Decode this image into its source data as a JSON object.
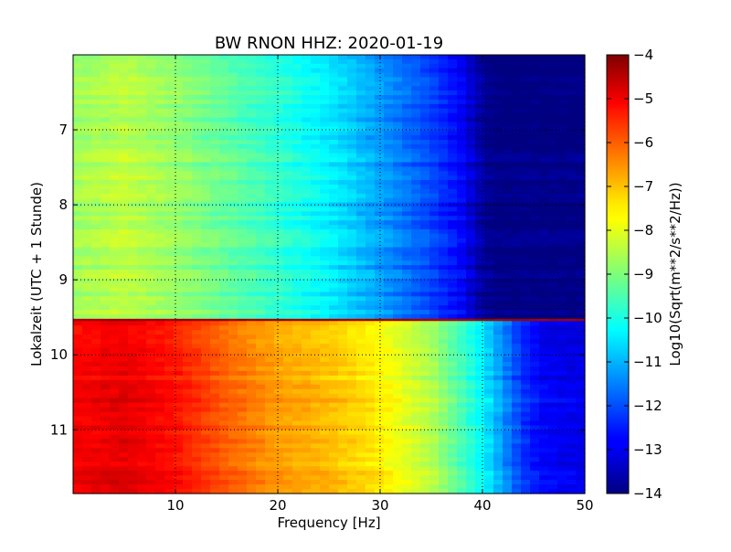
{
  "chart_data": {
    "type": "heatmap",
    "title": "BW RNON HHZ: 2020-01-19",
    "xlabel": "Frequency [Hz]",
    "ylabel": "Lokalzeit (UTC + 1 Stunde)",
    "xlim": [
      0,
      50
    ],
    "ylim": [
      6.0,
      11.85
    ],
    "y_inverted": true,
    "x_ticks": [
      10,
      20,
      30,
      40,
      50
    ],
    "x_tick_labels": [
      "10",
      "20",
      "30",
      "40",
      "50"
    ],
    "y_ticks": [
      7,
      8,
      9,
      10,
      11
    ],
    "y_tick_labels": [
      "7",
      "8",
      "9",
      "10",
      "11"
    ],
    "grid": true,
    "colormap": "jet",
    "colorbar": {
      "label": "Log10(Sqrt(m**2/s**2/Hz))",
      "range": [
        -14,
        -4
      ],
      "ticks": [
        -4,
        -5,
        -6,
        -7,
        -8,
        -9,
        -10,
        -11,
        -12,
        -13,
        -14
      ],
      "tick_labels": [
        "−4",
        "−5",
        "−6",
        "−7",
        "−8",
        "−9",
        "−10",
        "−11",
        "−12",
        "−13",
        "−14"
      ]
    },
    "z_profiles": [
      {
        "time_range": [
          6.0,
          9.52
        ],
        "freq": [
          0,
          5,
          10,
          15,
          20,
          25,
          30,
          35,
          38,
          40,
          41,
          42,
          50
        ],
        "value": [
          -8.7,
          -8.4,
          -8.8,
          -9.3,
          -9.8,
          -10.4,
          -11.2,
          -12.1,
          -12.8,
          -13.7,
          -14.0,
          -14.0,
          -14.0
        ]
      },
      {
        "time_range": [
          9.52,
          9.55
        ],
        "freq": [
          0,
          50
        ],
        "value": [
          -4.3,
          -4.3
        ]
      },
      {
        "time_range": [
          9.55,
          11.85
        ],
        "freq": [
          0,
          5,
          10,
          15,
          20,
          25,
          30,
          35,
          40,
          44,
          46,
          50
        ],
        "value": [
          -5.2,
          -5.0,
          -5.4,
          -6.2,
          -6.8,
          -7.1,
          -7.6,
          -8.5,
          -10.3,
          -12.3,
          -12.8,
          -13.0
        ]
      }
    ]
  }
}
